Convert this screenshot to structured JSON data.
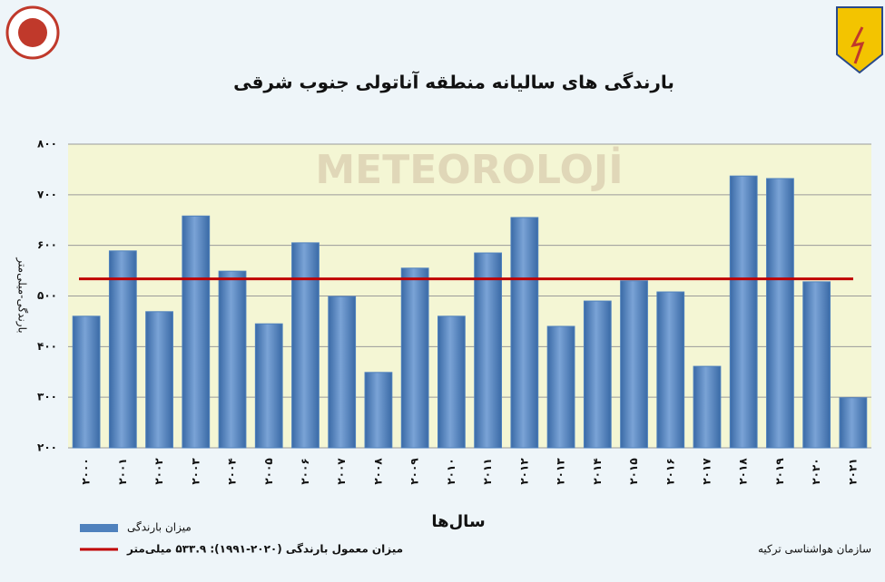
{
  "chart_data": {
    "type": "bar",
    "title": "بارندگی های سالیانه منطقه آناتولی جنوب شرقی",
    "watermark": "METEOROLOJİ",
    "y_label": "بارندگی-میلی‌متر",
    "x_label": "سال‌ها",
    "source": "سازمان هواشناسی ترکیه",
    "categories": [
      "۲۰۰۰",
      "۲۰۰۱",
      "۲۰۰۲",
      "۲۰۰۳",
      "۲۰۰۴",
      "۲۰۰۵",
      "۲۰۰۶",
      "۲۰۰۷",
      "۲۰۰۸",
      "۲۰۰۹",
      "۲۰۱۰",
      "۲۰۱۱",
      "۲۰۱۲",
      "۲۰۱۳",
      "۲۰۱۴",
      "۲۰۱۵",
      "۲۰۱۶",
      "۲۰۱۷",
      "۲۰۱۸",
      "۲۰۱۹",
      "۲۰۲۰",
      "۲۰۲۱"
    ],
    "series": [
      {
        "name": "میزان بارندگی",
        "color": "#4f81bd",
        "values": [
          460,
          589,
          469,
          658,
          549,
          445,
          605,
          499,
          349,
          555,
          460,
          585,
          655,
          440,
          490,
          530,
          508,
          361,
          737,
          732,
          528,
          299
        ]
      }
    ],
    "reference_line": {
      "name": "میزان معمول بارندگی (۲۰۲۰-۱۹۹۱): ۵۳۳.۹ میلی‌متر",
      "value": 533.9,
      "color": "#c00000"
    },
    "ylim": [
      200,
      800
    ],
    "yticks": [
      {
        "value": 200,
        "label": "۲۰۰"
      },
      {
        "value": 300,
        "label": "۳۰۰"
      },
      {
        "value": 400,
        "label": "۴۰۰"
      },
      {
        "value": 500,
        "label": "۵۰۰"
      },
      {
        "value": 600,
        "label": "۶۰۰"
      },
      {
        "value": 700,
        "label": "۷۰۰"
      },
      {
        "value": 800,
        "label": "۸۰۰"
      }
    ],
    "grid": true
  }
}
